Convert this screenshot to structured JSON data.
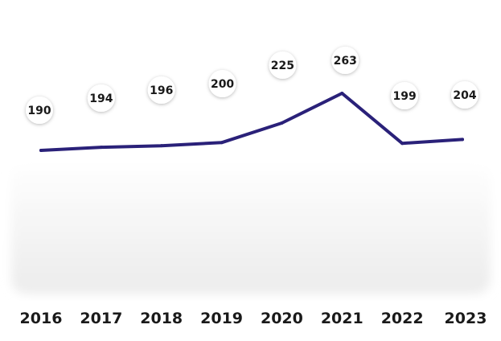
{
  "chart_data": {
    "type": "line",
    "categories": [
      "2016",
      "2017",
      "2018",
      "2019",
      "2020",
      "2021",
      "2022",
      "2023"
    ],
    "values": [
      190,
      194,
      196,
      200,
      225,
      263,
      199,
      204
    ],
    "data_labels": [
      "190",
      "194",
      "196",
      "200",
      "225",
      "263",
      "199",
      "204"
    ],
    "ylim": [
      0,
      300
    ],
    "grid": false,
    "legend": "none",
    "line_color": "#2a2179",
    "background_band_color": "#f1f1f1"
  }
}
